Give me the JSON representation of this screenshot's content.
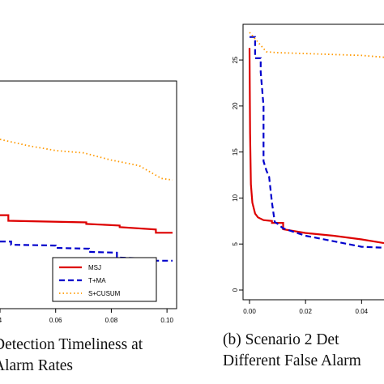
{
  "chart_data": [
    {
      "type": "line",
      "panel": "a",
      "title": "",
      "xlabel": "",
      "ylabel": "",
      "xlim": [
        0.04,
        0.102
      ],
      "ylim": [
        0,
        28
      ],
      "x_ticks": [
        "4",
        "0.06",
        "0.08",
        "0.10"
      ],
      "y_ticks": [],
      "grid": false,
      "legend_position": "bottom-right",
      "series": [
        {
          "name": "MSJ",
          "color": "#dd0000",
          "style": "solid",
          "x": [
            0.04,
            0.043,
            0.043,
            0.071,
            0.071,
            0.083,
            0.083,
            0.096,
            0.096,
            0.102
          ],
          "y": [
            11.2,
            11.2,
            10.5,
            10.3,
            10.1,
            9.9,
            9.7,
            9.4,
            9.0,
            9.0
          ]
        },
        {
          "name": "T+MA",
          "color": "#0000cc",
          "style": "dashed",
          "x": [
            0.04,
            0.044,
            0.044,
            0.06,
            0.06,
            0.072,
            0.072,
            0.082,
            0.082,
            0.09,
            0.09,
            0.102
          ],
          "y": [
            7.9,
            7.9,
            7.5,
            7.4,
            7.1,
            7.0,
            6.6,
            6.5,
            5.9,
            5.8,
            5.5,
            5.5
          ]
        },
        {
          "name": "S+CUSUM",
          "color": "#ff9900",
          "style": "dotted",
          "x": [
            0.04,
            0.05,
            0.06,
            0.07,
            0.08,
            0.09,
            0.098,
            0.102
          ],
          "y": [
            20.7,
            19.9,
            19.3,
            19.0,
            18.1,
            17.4,
            15.8,
            15.6
          ]
        }
      ],
      "legend": [
        "MSJ",
        "T+MA",
        "S+CUSUM"
      ]
    },
    {
      "type": "line",
      "panel": "b",
      "title": "",
      "xlabel": "",
      "ylabel": "",
      "xlim": [
        0,
        0.048
      ],
      "ylim": [
        0,
        28
      ],
      "x_ticks": [
        "0.00",
        "0.02",
        "0.04"
      ],
      "y_ticks": [
        "0",
        "5",
        "10",
        "15",
        "20",
        "25"
      ],
      "grid": false,
      "series": [
        {
          "name": "MSJ",
          "color": "#dd0000",
          "style": "solid",
          "x": [
            0,
            0.0002,
            0.0005,
            0.001,
            0.002,
            0.003,
            0.005,
            0.008,
            0.008,
            0.012,
            0.012,
            0.02,
            0.03,
            0.04,
            0.048
          ],
          "y": [
            26.3,
            17,
            11.5,
            9.5,
            8.3,
            7.9,
            7.6,
            7.5,
            7.3,
            7.3,
            6.6,
            6.2,
            5.9,
            5.5,
            5.1
          ]
        },
        {
          "name": "T+MA",
          "color": "#0000cc",
          "style": "dashed",
          "x": [
            0,
            0.002,
            0.002,
            0.004,
            0.004,
            0.005,
            0.005,
            0.006,
            0.007,
            0.008,
            0.009,
            0.01,
            0.012,
            0.02,
            0.03,
            0.04,
            0.048
          ],
          "y": [
            27.5,
            27.5,
            25.2,
            25.2,
            23.7,
            20,
            14,
            13,
            12.3,
            9.5,
            7.4,
            7.2,
            6.7,
            5.9,
            5.3,
            4.7,
            4.6
          ]
        },
        {
          "name": "S+CUSUM",
          "color": "#ff9900",
          "style": "dotted",
          "x": [
            0,
            0.002,
            0.004,
            0.006,
            0.01,
            0.02,
            0.03,
            0.04,
            0.048
          ],
          "y": [
            28,
            27.3,
            26.6,
            25.9,
            25.8,
            25.7,
            25.6,
            25.5,
            25.3
          ]
        }
      ]
    }
  ],
  "captions": {
    "a_line1": "Detection Timeliness at",
    "a_line2": "Alarm Rates",
    "b_line1": "(b)  Scenario  2  Det",
    "b_line2": "Different False Alarm"
  }
}
